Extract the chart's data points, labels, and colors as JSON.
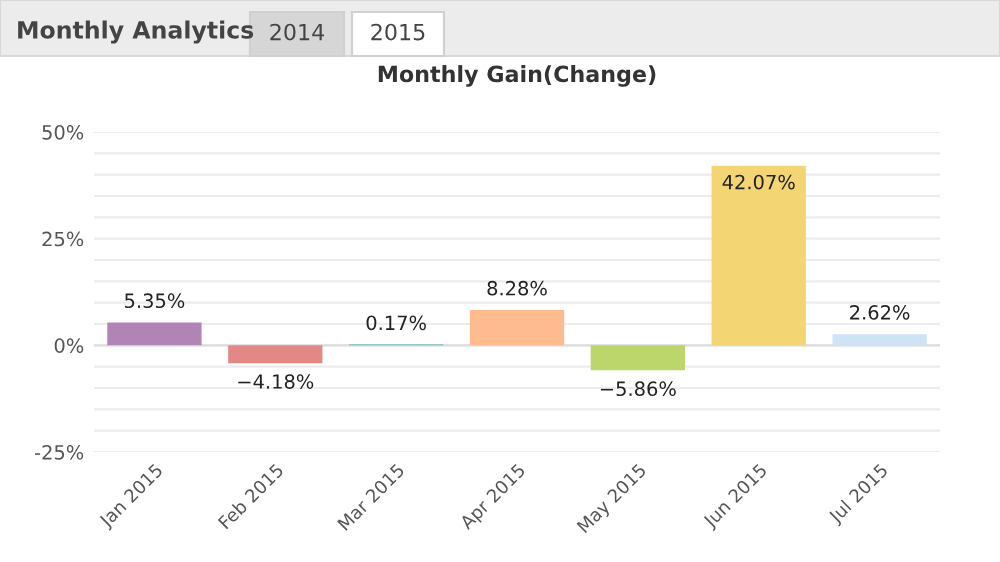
{
  "chart_data": {
    "type": "bar",
    "title": "Monthly Gain(Change)",
    "categories": [
      "Jan 2015",
      "Feb 2015",
      "Mar 2015",
      "Apr 2015",
      "May 2015",
      "Jun 2015",
      "Jul 2015"
    ],
    "values": [
      5.35,
      -4.18,
      0.17,
      8.28,
      -5.86,
      42.07,
      2.62
    ],
    "colors": [
      "#b085b5",
      "#e38985",
      "#4fb0a8",
      "#fdbb8f",
      "#bcd66b",
      "#f4d574",
      "#cfe3f7"
    ],
    "value_labels": [
      "5.35%",
      "−4.18%",
      "0.17%",
      "8.28%",
      "−5.86%",
      "42.07%",
      "2.62%"
    ],
    "ylim": [
      -25,
      50
    ],
    "yticks": [
      {
        "value": -25,
        "label": "-25%"
      },
      {
        "value": -20,
        "label": null
      },
      {
        "value": -15,
        "label": null
      },
      {
        "value": -10,
        "label": null
      },
      {
        "value": -5,
        "label": null
      },
      {
        "value": 0,
        "label": "0%"
      },
      {
        "value": 5,
        "label": null
      },
      {
        "value": 10,
        "label": null
      },
      {
        "value": 15,
        "label": null
      },
      {
        "value": 20,
        "label": null
      },
      {
        "value": 25,
        "label": "25%"
      },
      {
        "value": 30,
        "label": null
      },
      {
        "value": 35,
        "label": null
      },
      {
        "value": 40,
        "label": null
      },
      {
        "value": 45,
        "label": null
      },
      {
        "value": 50,
        "label": "50%"
      }
    ],
    "grid": "y",
    "legend": false,
    "annotations": [
      "Monthly Analytics",
      "2014",
      "2015"
    ]
  }
}
